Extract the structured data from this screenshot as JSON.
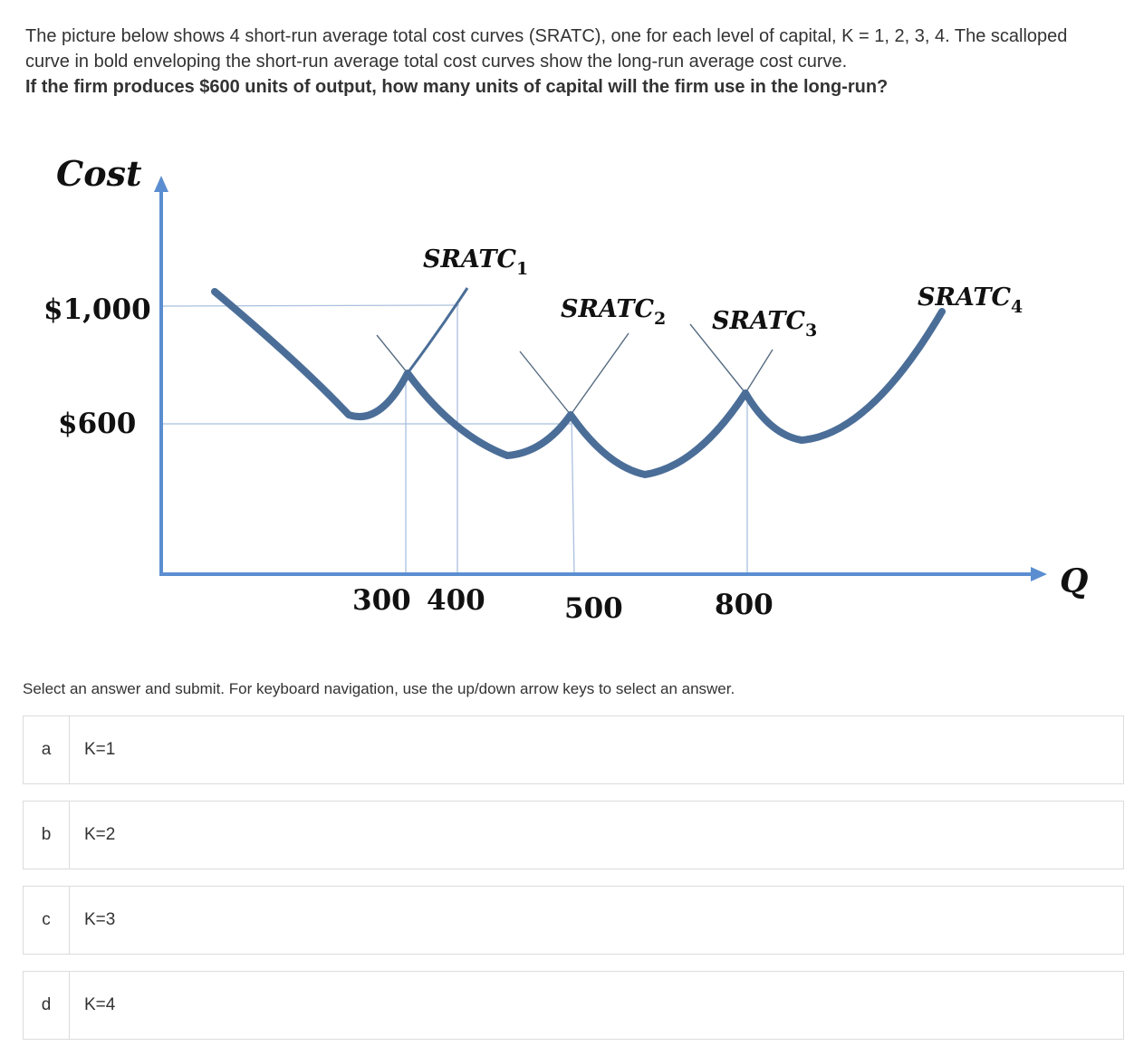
{
  "question": {
    "body": "The picture below shows 4 short-run average total cost curves (SRATC), one for each level of capital, K = 1, 2, 3, 4. The scalloped curve in bold enveloping the short-run average total cost curves show the long-run average cost curve.",
    "prompt": "If the firm produces $600 units of output, how many units of capital will the firm use in the long-run?"
  },
  "chart_data": {
    "type": "line",
    "ylabel": "Cost",
    "xlabel": "Q",
    "y_ticks": [
      "$1,000",
      "$600"
    ],
    "x_ticks": [
      "300",
      "400",
      "500",
      "800"
    ],
    "series": [
      {
        "name": "SRATC",
        "subscript": "1"
      },
      {
        "name": "SRATC",
        "subscript": "2"
      },
      {
        "name": "SRATC",
        "subscript": "3"
      },
      {
        "name": "SRATC",
        "subscript": "4"
      }
    ],
    "colors": {
      "axis": "#5b8ed0",
      "envelope": "#4b6e98",
      "guide": "#9fb7d6"
    }
  },
  "instructions": "Select an answer and submit. For keyboard navigation, use the up/down arrow keys to select an answer.",
  "options": [
    {
      "letter": "a",
      "text": "K=1"
    },
    {
      "letter": "b",
      "text": "K=2"
    },
    {
      "letter": "c",
      "text": "K=3"
    },
    {
      "letter": "d",
      "text": "K=4"
    }
  ]
}
